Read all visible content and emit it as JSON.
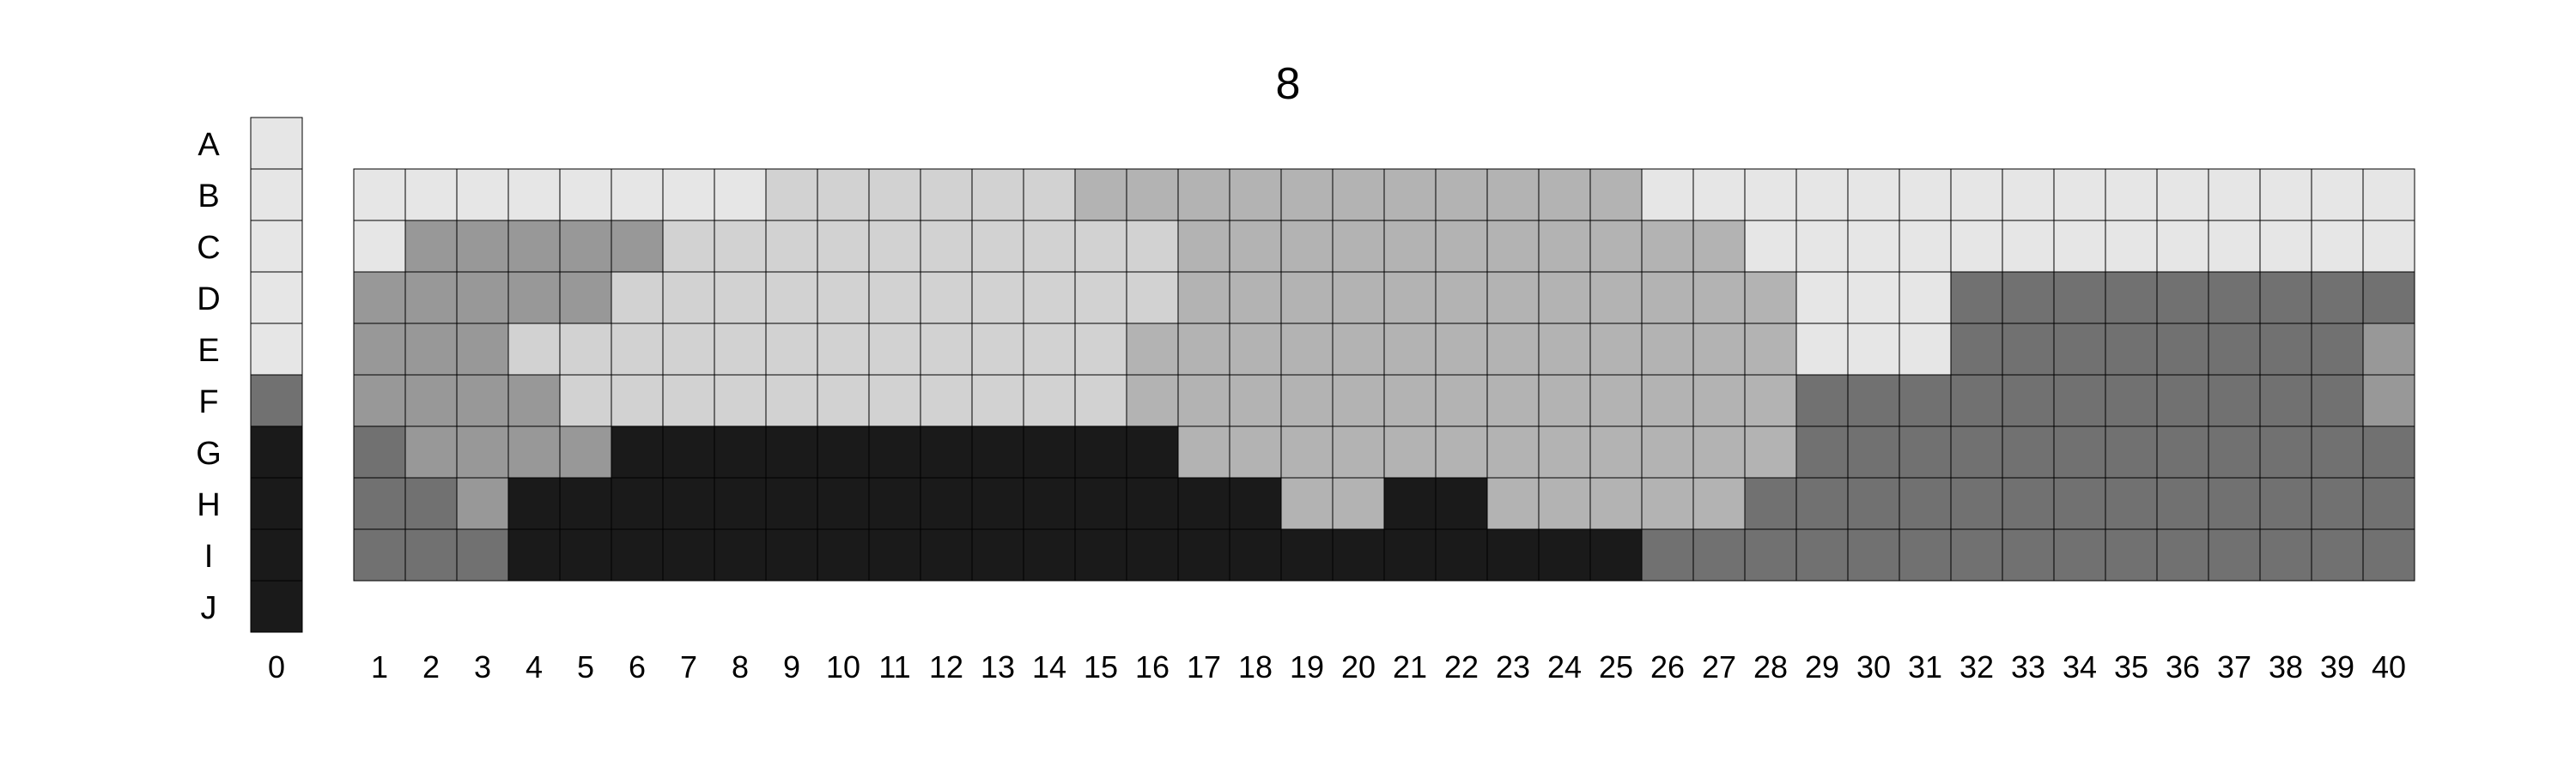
{
  "title": "8",
  "row_labels": [
    "A",
    "B",
    "C",
    "D",
    "E",
    "F",
    "G",
    "H",
    "I",
    "J"
  ],
  "column_labels": [
    "0",
    "1",
    "2",
    "3",
    "4",
    "5",
    "6",
    "7",
    "8",
    "9",
    "10",
    "11",
    "12",
    "13",
    "14",
    "15",
    "16",
    "17",
    "18",
    "19",
    "20",
    "21",
    "22",
    "23",
    "24",
    "25",
    "26",
    "27",
    "28",
    "29",
    "30",
    "31",
    "32",
    "33",
    "34",
    "35",
    "36",
    "37",
    "38",
    "39",
    "40"
  ],
  "palette": {
    "1": "#e6e6e6",
    "2": "#d2d2d2",
    "3": "#b3b3b3",
    "4": "#989898",
    "5": "#717171",
    "6": "#1a1a1a"
  },
  "swatch_column": {
    "label": "0",
    "rows": [
      "A",
      "B",
      "C",
      "D",
      "E",
      "F",
      "G",
      "H",
      "I",
      "J"
    ],
    "shades": [
      1,
      1,
      1,
      1,
      1,
      5,
      6,
      6,
      6,
      6
    ]
  },
  "main_grid": {
    "rows": [
      "B",
      "C",
      "D",
      "E",
      "F",
      "G",
      "H",
      "I"
    ],
    "cells": [
      "1111111122222233333333333111111111111111",
      "1444442222222222333333333331111111111111",
      "4444422222222222333333333333111555555555",
      "4442222222222223333333333333111555555554",
      "4444222222222223333333333333555555555554",
      "5444466666666666333333333333555555555555",
      "5546666666666666663366333335555555555555",
      "5556666666666666666666666555555555555555"
    ]
  }
}
